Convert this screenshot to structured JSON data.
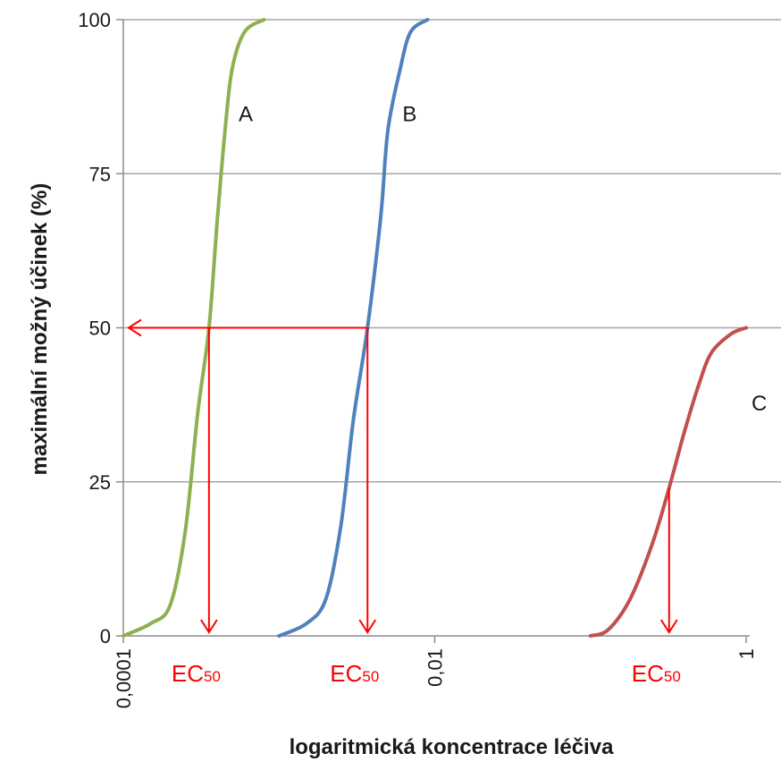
{
  "chart_data": {
    "type": "line",
    "xlabel": "logaritmická koncentrace léčiva",
    "ylabel": "maximální možný účinek (%)",
    "x_scale": "log",
    "xlim": [
      0.0001,
      1
    ],
    "ylim": [
      0,
      100
    ],
    "x_ticks": [
      {
        "value": 0.0001,
        "label": "0,0001"
      },
      {
        "value": 0.01,
        "label": "0,01"
      },
      {
        "value": 1,
        "label": "1"
      }
    ],
    "y_ticks": [
      {
        "value": 0,
        "label": "0"
      },
      {
        "value": 25,
        "label": "25"
      },
      {
        "value": 50,
        "label": "50"
      },
      {
        "value": 75,
        "label": "75"
      },
      {
        "value": 100,
        "label": "100"
      }
    ],
    "grid": "horizontal",
    "series": [
      {
        "name": "A",
        "color": "#8db050",
        "points": [
          [
            0.0001,
            0
          ],
          [
            0.00015,
            2
          ],
          [
            0.0002,
            5
          ],
          [
            0.00025,
            17
          ],
          [
            0.0003,
            36
          ],
          [
            0.000355,
            50
          ],
          [
            0.0004,
            67
          ],
          [
            0.00045,
            82
          ],
          [
            0.0005,
            92
          ],
          [
            0.0006,
            98
          ],
          [
            0.0008,
            100
          ]
        ]
      },
      {
        "name": "B",
        "color": "#4f81bd",
        "points": [
          [
            0.001,
            0
          ],
          [
            0.0015,
            2
          ],
          [
            0.002,
            6
          ],
          [
            0.0025,
            18
          ],
          [
            0.003,
            35
          ],
          [
            0.0037,
            50
          ],
          [
            0.0045,
            68
          ],
          [
            0.005,
            82
          ],
          [
            0.006,
            92
          ],
          [
            0.007,
            98
          ],
          [
            0.009,
            100
          ]
        ]
      },
      {
        "name": "C",
        "color": "#c0504d",
        "points": [
          [
            0.1,
            0
          ],
          [
            0.13,
            1
          ],
          [
            0.18,
            6
          ],
          [
            0.25,
            15
          ],
          [
            0.32,
            24
          ],
          [
            0.4,
            33
          ],
          [
            0.5,
            41
          ],
          [
            0.6,
            46
          ],
          [
            0.8,
            49
          ],
          [
            1,
            50
          ]
        ]
      }
    ],
    "annotations": [
      {
        "type": "arrow-left",
        "y": 50,
        "from_x": 0.0037,
        "color": "#ff0000"
      },
      {
        "type": "arrow-down",
        "x": 0.000355,
        "from_y": 50,
        "color": "#ff0000"
      },
      {
        "type": "arrow-down",
        "x": 0.0037,
        "from_y": 50,
        "color": "#ff0000"
      },
      {
        "type": "arrow-down",
        "x": 0.32,
        "from_y": 24,
        "color": "#ff0000"
      }
    ],
    "ec_labels": [
      {
        "main": "EC",
        "sub": "50",
        "x": 0.000355
      },
      {
        "main": "EC",
        "sub": "50",
        "x": 0.0037
      },
      {
        "main": "EC",
        "sub": "50",
        "x": 0.32
      }
    ]
  }
}
